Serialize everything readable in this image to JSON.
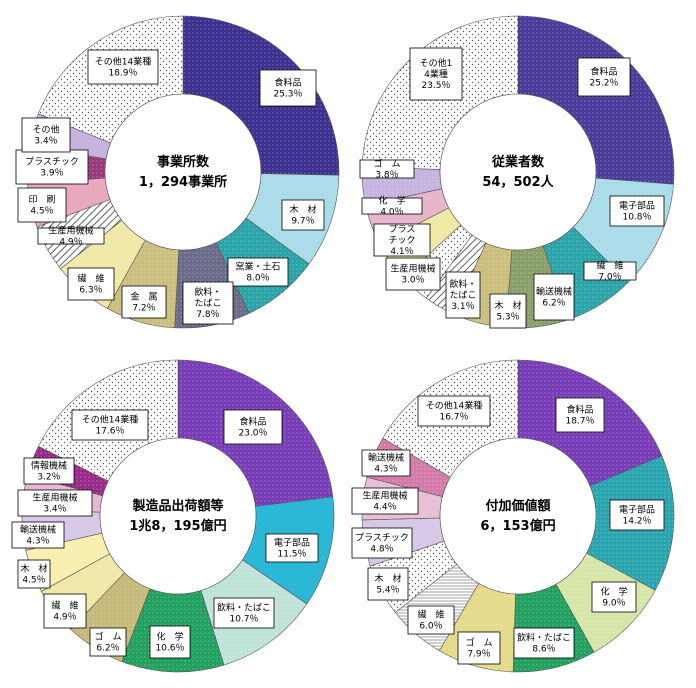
{
  "palette": {
    "food": "#4a3d9a",
    "food_light": "#9b87d6",
    "teal": "#2aa5b0",
    "skyblue": "#86cbe6",
    "mint": "#bfe3d9",
    "olive": "#8aa06a",
    "green": "#22a060",
    "khaki": "#c5ba7a",
    "pale": "#f2ecaf",
    "pink": "#d27aa8",
    "rose": "#e6b6cc",
    "magenta": "#9a3a7a",
    "lavender": "#c8b3df",
    "purple": "#8a2a9a",
    "gray": "#c8c8c8"
  },
  "chart_data": [
    {
      "type": "pie",
      "title": "事業所数",
      "center_lines": [
        "事業所数",
        "1，294事業所"
      ],
      "slices": [
        {
          "label": "食料品",
          "value": 25.3,
          "pct": "25.3％",
          "color": "#3d3190",
          "pattern": "dots"
        },
        {
          "label": "木　材",
          "value": 9.7,
          "pct": "9.7％",
          "color": "#a9dbe8",
          "pattern": "dots"
        },
        {
          "label": "窯業・土石",
          "value": 8.0,
          "pct": "8.0％",
          "color": "#2aa4a8",
          "pattern": "dots"
        },
        {
          "label": "飲料・たばこ",
          "value": 7.8,
          "pct": "7.8％",
          "color": "#6b6b8a",
          "pattern": "dots"
        },
        {
          "label": "金　属",
          "value": 7.2,
          "pct": "7.2％",
          "color": "#cbbf80",
          "pattern": "dots"
        },
        {
          "label": "繊　維",
          "value": 6.3,
          "pct": "6.3％",
          "color": "#efe8a6",
          "pattern": "dots"
        },
        {
          "label": "生産用機械",
          "value": 4.9,
          "pct": "4.9％",
          "color": "#ffffff",
          "pattern": "hatch"
        },
        {
          "label": "印　刷",
          "value": 4.5,
          "pct": "4.5％",
          "color": "#e8a8c0",
          "pattern": "none"
        },
        {
          "label": "プラスチック",
          "value": 3.9,
          "pct": "3.9％",
          "color": "#9a3a7a",
          "pattern": "dots"
        },
        {
          "label": "その他",
          "value": 3.4,
          "pct": "3.4％",
          "color": "#c6b3df",
          "pattern": "none"
        },
        {
          "label": "その他14業種",
          "value": 18.9,
          "pct": "18.9％",
          "color": "#ffffff",
          "pattern": "sparse"
        }
      ]
    },
    {
      "type": "pie",
      "title": "従業者数",
      "center_lines": [
        "従業者数",
        "54，502人"
      ],
      "slices": [
        {
          "label": "食料品",
          "value": 25.2,
          "pct": "25.2％",
          "color": "#4a3d9a",
          "pattern": "dots"
        },
        {
          "label": "電子部品",
          "value": 10.8,
          "pct": "10.8％",
          "color": "#a9dbe8",
          "pattern": "dots"
        },
        {
          "label": "繊　維",
          "value": 7.0,
          "pct": "7.0％",
          "color": "#2aa4a8",
          "pattern": "dots"
        },
        {
          "label": "輸送機械",
          "value": 6.2,
          "pct": "6.2％",
          "color": "#8aa06a",
          "pattern": "dots"
        },
        {
          "label": "木　材",
          "value": 5.3,
          "pct": "5.3％",
          "color": "#cbbf80",
          "pattern": "dots"
        },
        {
          "label": "飲料・たばこ",
          "value": 3.1,
          "pct": "3.1％",
          "color": "#ffffff",
          "pattern": "hatch"
        },
        {
          "label": "生産用機械",
          "value": 3.0,
          "pct": "3.0％",
          "color": "#ffffff",
          "pattern": "sparse"
        },
        {
          "label": "プラスチック",
          "value": 4.1,
          "pct": "4.1％",
          "color": "#efe8a6",
          "pattern": "none"
        },
        {
          "label": "化　学",
          "value": 4.0,
          "pct": "4.0％",
          "color": "#e6b6cc",
          "pattern": "none"
        },
        {
          "label": "ゴ　ム",
          "value": 3.8,
          "pct": "3.8％",
          "color": "#c6b3df",
          "pattern": "dots"
        },
        {
          "label": "その他14業種",
          "value": 23.5,
          "pct": "23.5％",
          "color": "#ffffff",
          "pattern": "sparse"
        }
      ]
    },
    {
      "type": "pie",
      "title": "製造品出荷額等",
      "center_lines": [
        "製造品出荷額等",
        "1兆8，195億円"
      ],
      "slices": [
        {
          "label": "食料品",
          "value": 23.0,
          "pct": "23.0％",
          "color": "#7a3db8",
          "pattern": "dots"
        },
        {
          "label": "電子部品",
          "value": 11.5,
          "pct": "11.5％",
          "color": "#2bb7d6",
          "pattern": "none"
        },
        {
          "label": "飲料・たばこ",
          "value": 10.7,
          "pct": "10.7％",
          "color": "#bfe3d9",
          "pattern": "dots"
        },
        {
          "label": "化　学",
          "value": 10.6,
          "pct": "10.6％",
          "color": "#22a060",
          "pattern": "dots"
        },
        {
          "label": "ゴ　ム",
          "value": 6.2,
          "pct": "6.2％",
          "color": "#c5ba7a",
          "pattern": "dots"
        },
        {
          "label": "繊　維",
          "value": 4.9,
          "pct": "4.9％",
          "color": "#efe8a6",
          "pattern": "dots"
        },
        {
          "label": "木　材",
          "value": 4.5,
          "pct": "4.5％",
          "color": "#f8efb0",
          "pattern": "none"
        },
        {
          "label": "輸送機械",
          "value": 4.3,
          "pct": "4.3％",
          "color": "#d8c8e8",
          "pattern": "none"
        },
        {
          "label": "生産用機械",
          "value": 3.4,
          "pct": "3.4％",
          "color": "#e8b8d0",
          "pattern": "none"
        },
        {
          "label": "情報機械",
          "value": 3.2,
          "pct": "3.2％",
          "color": "#9a2a8a",
          "pattern": "dots"
        },
        {
          "label": "その他14業種",
          "value": 17.6,
          "pct": "17.6％",
          "color": "#ffffff",
          "pattern": "sparse"
        }
      ]
    },
    {
      "type": "pie",
      "title": "付加価値額",
      "center_lines": [
        "付加価値額",
        "6，153億円"
      ],
      "slices": [
        {
          "label": "食料品",
          "value": 18.7,
          "pct": "18.7％",
          "color": "#7a3db8",
          "pattern": "dots"
        },
        {
          "label": "電子部品",
          "value": 14.2,
          "pct": "14.2％",
          "color": "#2aa5b0",
          "pattern": "dots"
        },
        {
          "label": "化　学",
          "value": 9.0,
          "pct": "9.0％",
          "color": "#d6e6a8",
          "pattern": "dots"
        },
        {
          "label": "飲料・たばこ",
          "value": 8.6,
          "pct": "8.6％",
          "color": "#22a060",
          "pattern": "dots"
        },
        {
          "label": "ゴ　ム",
          "value": 7.9,
          "pct": "7.9％",
          "color": "#e4da8a",
          "pattern": "dots"
        },
        {
          "label": "繊　維",
          "value": 6.0,
          "pct": "6.0％",
          "color": "#ffffff",
          "pattern": "hlines"
        },
        {
          "label": "木　材",
          "value": 5.4,
          "pct": "5.4％",
          "color": "#ffffff",
          "pattern": "sparse"
        },
        {
          "label": "プラスチック",
          "value": 4.8,
          "pct": "4.8％",
          "color": "#d8c8e8",
          "pattern": "none"
        },
        {
          "label": "生産用機械",
          "value": 4.4,
          "pct": "4.4％",
          "color": "#e8c0d4",
          "pattern": "none"
        },
        {
          "label": "輸送機械",
          "value": 4.3,
          "pct": "4.3％",
          "color": "#d27aa8",
          "pattern": "dots"
        },
        {
          "label": "その他14業種",
          "value": 16.7,
          "pct": "16.7％",
          "color": "#ffffff",
          "pattern": "sparse"
        }
      ]
    }
  ]
}
